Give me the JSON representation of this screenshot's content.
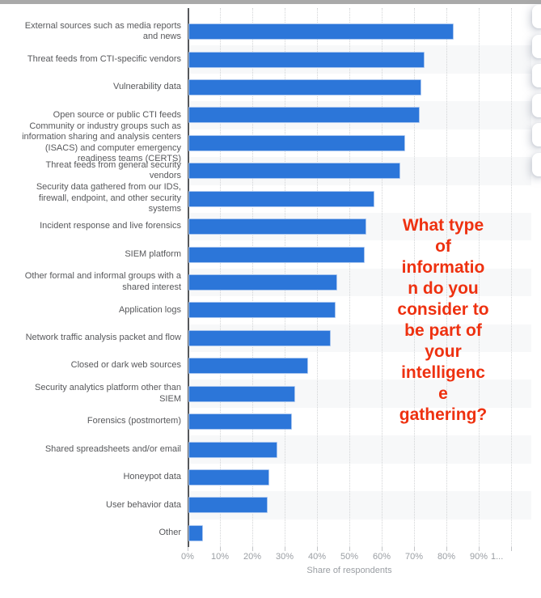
{
  "chart_data": {
    "type": "bar",
    "orientation": "horizontal",
    "title": "What type of information do you consider to be part of your intelligence gathering?",
    "title_overlay_lines": [
      "What type",
      "of",
      "informatio",
      "n do you",
      "consider to",
      "be part of",
      "your",
      "intelligenc",
      "e",
      "gathering?"
    ],
    "xlabel": "Share of respondents",
    "xlim": [
      0,
      100
    ],
    "x_tick_labels": [
      "0%",
      "10%",
      "20%",
      "30%",
      "40%",
      "50%",
      "60%",
      "70%",
      "80%",
      "90%",
      "1..."
    ],
    "grid": "vertical-dotted",
    "legend": "none",
    "categories": [
      "External sources such as media reports\nand news",
      "Threat feeds from CTI-specific vendors",
      "Vulnerability data",
      "Open source or public CTI feeds",
      "Community or industry groups such as\ninformation sharing and analysis centers\n(ISACS) and computer emergency\nreadiness teams (CERTS)",
      "Threat feeds from general security\nvendors",
      "Security data gathered from our IDS,\nfirewall, endpoint, and other security\nsystems",
      "Incident response and live forensics",
      "SIEM platform",
      "Other formal and informal groups with a\nshared interest",
      "Application logs",
      "Network traffic analysis packet and flow",
      "Closed or dark web sources",
      "Security analytics platform other than\nSIEM",
      "Forensics (postmortem)",
      "Shared spreadsheets and/or email",
      "Honeypot data",
      "User behavior data",
      "Other"
    ],
    "values": [
      82,
      73,
      72,
      71.5,
      67,
      65.5,
      57.5,
      55,
      54.5,
      46,
      45.5,
      44,
      37,
      33,
      32,
      27.5,
      25,
      24.5,
      4.5
    ]
  },
  "colors": {
    "bar": "#2c76d9",
    "bar_edge": "#a9c6ef",
    "question_red": "#ee3110",
    "stripe": "#f7f8f9",
    "top_border": "#a9a9a9"
  },
  "side_toolbar": {
    "button_count": 6
  }
}
